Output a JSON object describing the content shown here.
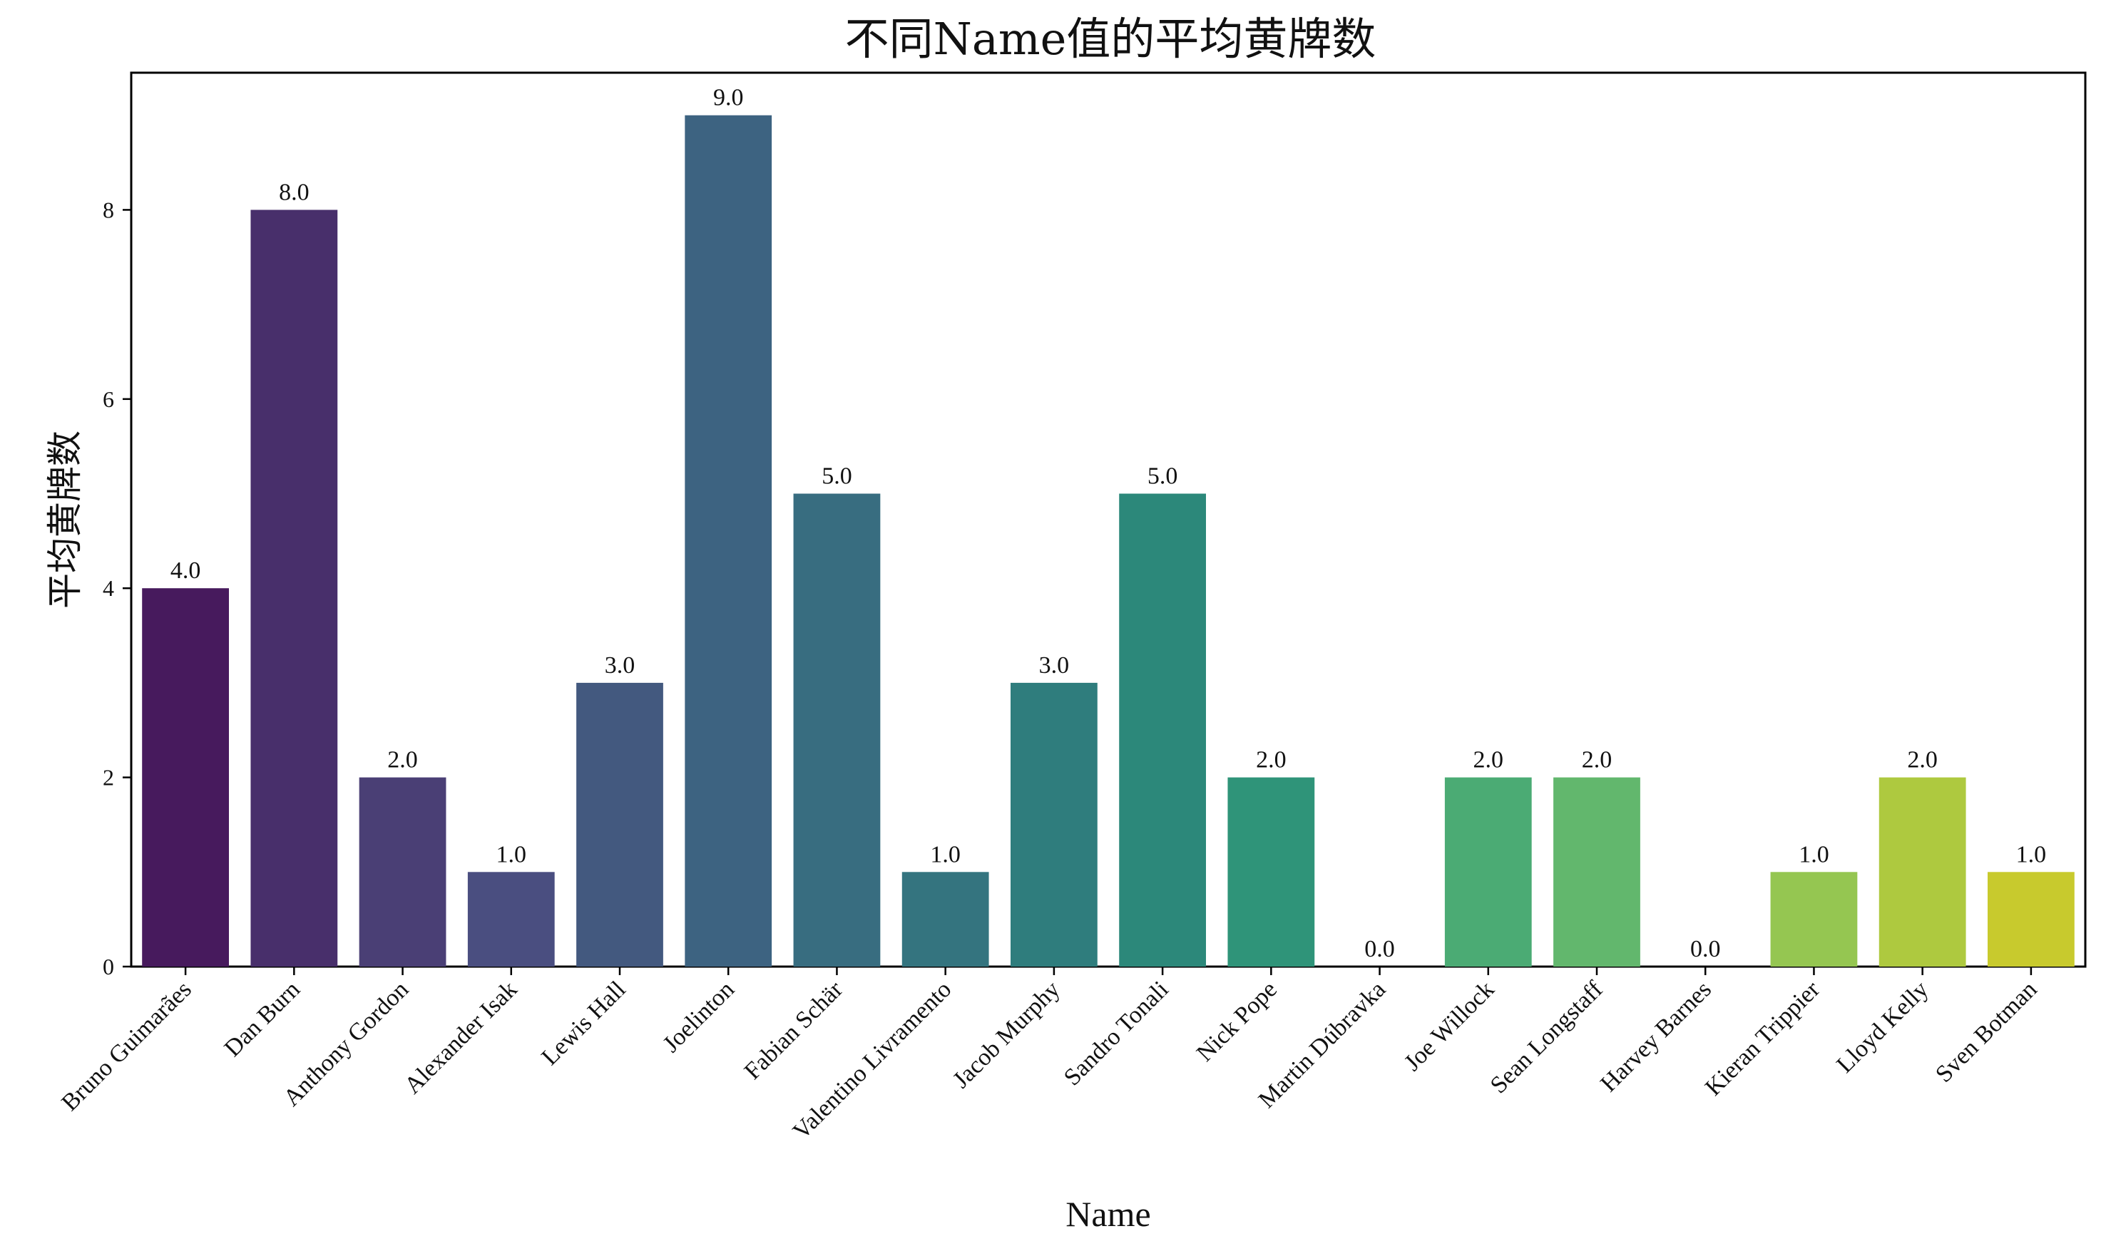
{
  "chart_data": {
    "type": "bar",
    "title": "不同Name值的平均黄牌数",
    "xlabel": "Name",
    "ylabel": "平均黄牌数",
    "ylim": [
      0,
      9.45
    ],
    "yticks": [
      0,
      2,
      4,
      6,
      8
    ],
    "grid": false,
    "categories": [
      "Bruno Guimarães",
      "Dan Burn",
      "Anthony Gordon",
      "Alexander Isak",
      "Lewis Hall",
      "Joelinton",
      "Fabian Schär",
      "Valentino Livramento",
      "Jacob Murphy",
      "Sandro Tonali",
      "Nick Pope",
      "Martin Dúbravka",
      "Joe Willock",
      "Sean Longstaff",
      "Harvey Barnes",
      "Kieran Trippier",
      "Lloyd Kelly",
      "Sven Botman"
    ],
    "values": [
      4.0,
      8.0,
      2.0,
      1.0,
      3.0,
      9.0,
      5.0,
      1.0,
      3.0,
      5.0,
      2.0,
      0.0,
      2.0,
      2.0,
      0.0,
      1.0,
      2.0,
      1.0
    ],
    "value_labels": [
      "4.0",
      "8.0",
      "2.0",
      "1.0",
      "3.0",
      "9.0",
      "5.0",
      "1.0",
      "3.0",
      "5.0",
      "2.0",
      "0.0",
      "2.0",
      "2.0",
      "0.0",
      "1.0",
      "2.0",
      "1.0"
    ],
    "colors": [
      "#471a5d",
      "#482f6b",
      "#4a3f75",
      "#4a4e80",
      "#43597f",
      "#3d6381",
      "#386d80",
      "#34747f",
      "#2f7d7d",
      "#2c887a",
      "#2f9479",
      "#3a9f77",
      "#4bab74",
      "#62b76d",
      "#7cc160",
      "#95c651",
      "#aec93f",
      "#c8ca2d"
    ]
  }
}
